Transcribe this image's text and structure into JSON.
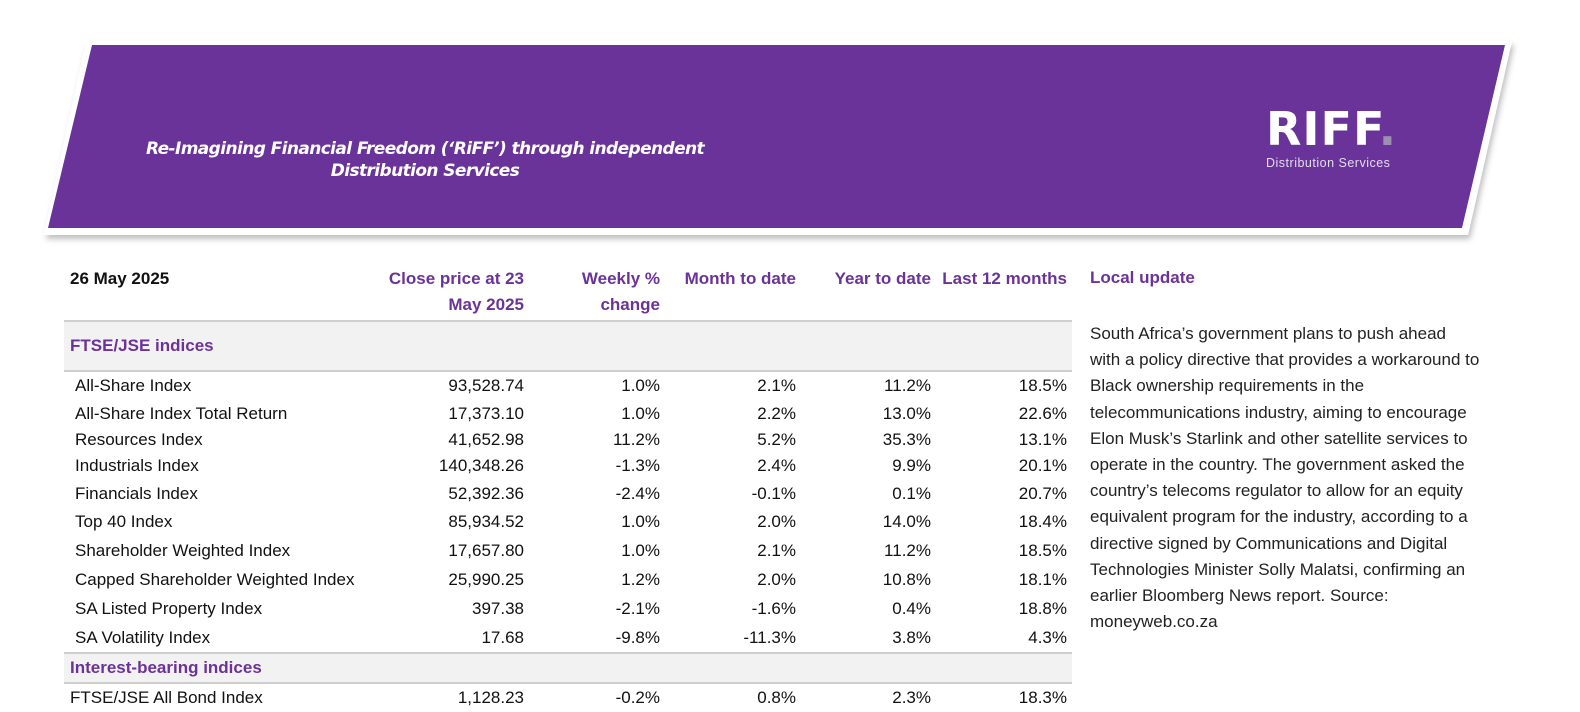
{
  "colors": {
    "brand": "#6b3399",
    "banner": "#6a3399",
    "section_bg": "#f2f2f2"
  },
  "header": {
    "tagline": "Re-Imagining Financial Freedom (‘RiFF’) through independent Distribution Services",
    "logo": {
      "word": "RIFF",
      "dot": ".",
      "subtitle": "Distribution Services"
    }
  },
  "table": {
    "date": "26 May 2025",
    "columns": {
      "close_line1": "Close price at 23",
      "close_line2": "May 2025",
      "weekly_line1": "Weekly %",
      "weekly_line2": "change",
      "mtd": "Month to date",
      "ytd": "Year to date",
      "l12m": "Last  12 months"
    },
    "sections": [
      {
        "title": "FTSE/JSE indices",
        "rows": [
          {
            "name": "All-Share Index",
            "close": "93,528.74",
            "weekly": "1.0%",
            "mtd": "2.1%",
            "ytd": "11.2%",
            "l12m": "18.5%"
          },
          {
            "name": "All-Share Index Total Return",
            "close": "17,373.10",
            "weekly": "1.0%",
            "mtd": "2.2%",
            "ytd": "13.0%",
            "l12m": "22.6%"
          },
          {
            "name": "Resources Index",
            "close": "41,652.98",
            "weekly": "11.2%",
            "mtd": "5.2%",
            "ytd": "35.3%",
            "l12m": "13.1%"
          },
          {
            "name": "Industrials Index",
            "close": "140,348.26",
            "weekly": "-1.3%",
            "mtd": "2.4%",
            "ytd": "9.9%",
            "l12m": "20.1%"
          },
          {
            "name": "Financials Index",
            "close": "52,392.36",
            "weekly": "-2.4%",
            "mtd": "-0.1%",
            "ytd": "0.1%",
            "l12m": "20.7%"
          },
          {
            "name": "Top 40 Index",
            "close": "85,934.52",
            "weekly": "1.0%",
            "mtd": "2.0%",
            "ytd": "14.0%",
            "l12m": "18.4%"
          },
          {
            "name": "Shareholder Weighted Index",
            "close": "17,657.80",
            "weekly": "1.0%",
            "mtd": "2.1%",
            "ytd": "11.2%",
            "l12m": "18.5%"
          },
          {
            "name": "Capped Shareholder Weighted Index",
            "close": "25,990.25",
            "weekly": "1.2%",
            "mtd": "2.0%",
            "ytd": "10.8%",
            "l12m": "18.1%"
          },
          {
            "name": "SA Listed Property Index",
            "close": "397.38",
            "weekly": "-2.1%",
            "mtd": "-1.6%",
            "ytd": "0.4%",
            "l12m": "18.8%"
          },
          {
            "name": "SA Volatility Index",
            "close": "17.68",
            "weekly": "-9.8%",
            "mtd": "-11.3%",
            "ytd": "3.8%",
            "l12m": "4.3%"
          }
        ]
      },
      {
        "title": "Interest-bearing indices",
        "rows": [
          {
            "name": "FTSE/JSE All Bond Index",
            "close": "1,128.23",
            "weekly": "-0.2%",
            "mtd": "0.8%",
            "ytd": "2.3%",
            "l12m": "18.3%"
          }
        ]
      }
    ]
  },
  "local_update": {
    "title": "Local update",
    "body": "South Africa’s government plans to push ahead with a policy directive that provides a workaround to Black ownership requirements in the telecommunications industry, aiming to encourage Elon Musk’s Starlink and other satellite services to operate in the country. The government asked the country’s telecoms regulator to allow for an equity equivalent program for the industry, according to a directive signed by Communications and Digital Technologies Minister Solly Malatsi, confirming an earlier Bloomberg News report. Source: moneyweb.co.za"
  }
}
